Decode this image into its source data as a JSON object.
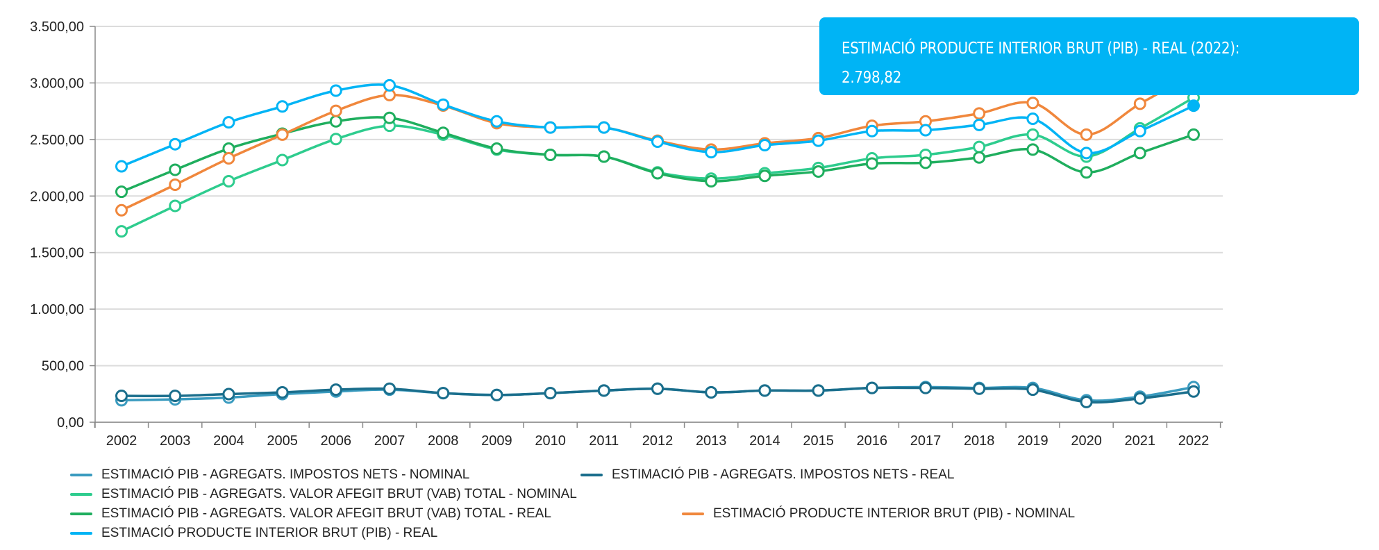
{
  "chart_data": {
    "type": "line",
    "title": "",
    "xlabel": "",
    "ylabel": "",
    "ylim": [
      0,
      3500
    ],
    "yticks": [
      "0,00",
      "500,00",
      "1.000,00",
      "1.500,00",
      "2.000,00",
      "2.500,00",
      "3.000,00",
      "3.500,00"
    ],
    "ytick_values": [
      0,
      500,
      1000,
      1500,
      2000,
      2500,
      3000,
      3500
    ],
    "grid": true,
    "legend_position": "bottom-left",
    "categories": [
      "2002",
      "2003",
      "2004",
      "2005",
      "2006",
      "2007",
      "2008",
      "2009",
      "2010",
      "2011",
      "2012",
      "2013",
      "2014",
      "2015",
      "2016",
      "2017",
      "2018",
      "2019",
      "2020",
      "2021",
      "2022"
    ],
    "series": [
      {
        "name": "ESTIMACIÓ PIB - AGREGATS. IMPOSTOS NETS - NOMINAL",
        "color": "#3a9bbf",
        "values": [
          194,
          202,
          218,
          249,
          272,
          288,
          257,
          241,
          257,
          280,
          296,
          264,
          280,
          280,
          303,
          311,
          303,
          303,
          194,
          226,
          311
        ]
      },
      {
        "name": "ESTIMACIÓ PIB - AGREGATS. IMPOSTOS NETS - REAL",
        "color": "#1a6e8c",
        "values": [
          233,
          233,
          249,
          264,
          288,
          296,
          257,
          241,
          257,
          280,
          296,
          264,
          280,
          280,
          303,
          303,
          296,
          288,
          179,
          210,
          272
        ]
      },
      {
        "name": "ESTIMACIÓ PIB - AGREGATS. VALOR AFEGIT BRUT (VAB) TOTAL - NOMINAL",
        "color": "#2ecc8e",
        "values": [
          1688,
          1913,
          2131,
          2318,
          2504,
          2621,
          2543,
          2411,
          2364,
          2349,
          2209,
          2154,
          2201,
          2248,
          2333,
          2364,
          2434,
          2543,
          2349,
          2598,
          2870
        ]
      },
      {
        "name": "ESTIMACIÓ PIB - AGREGATS. VALOR AFEGIT BRUT (VAB) TOTAL - REAL",
        "color": "#1fae5e",
        "values": [
          2038,
          2232,
          2419,
          2551,
          2660,
          2691,
          2559,
          2419,
          2364,
          2349,
          2201,
          2131,
          2178,
          2217,
          2287,
          2294,
          2341,
          2411,
          2209,
          2380,
          2543
        ]
      },
      {
        "name": "ESTIMACIÓ PRODUCTE INTERIOR BRUT (PIB) - NOMINAL",
        "color": "#f0873c",
        "values": [
          1874,
          2100,
          2333,
          2543,
          2753,
          2893,
          2800,
          2644,
          2606,
          2606,
          2489,
          2411,
          2466,
          2512,
          2621,
          2660,
          2730,
          2823,
          2543,
          2816,
          3080
        ]
      },
      {
        "name": "ESTIMACIÓ PRODUCTE INTERIOR BRUT (PIB) - REAL",
        "color": "#00b4f5",
        "values": [
          2263,
          2458,
          2652,
          2792,
          2932,
          2979,
          2808,
          2660,
          2606,
          2606,
          2481,
          2388,
          2450,
          2489,
          2574,
          2582,
          2629,
          2683,
          2380,
          2574,
          2798.82
        ]
      }
    ],
    "tooltip": {
      "series_index": 5,
      "point_index": 20,
      "label": "ESTIMACIÓ PRODUCTE INTERIOR BRUT (PIB) - REAL (2022):",
      "value": "2.798,82"
    }
  }
}
